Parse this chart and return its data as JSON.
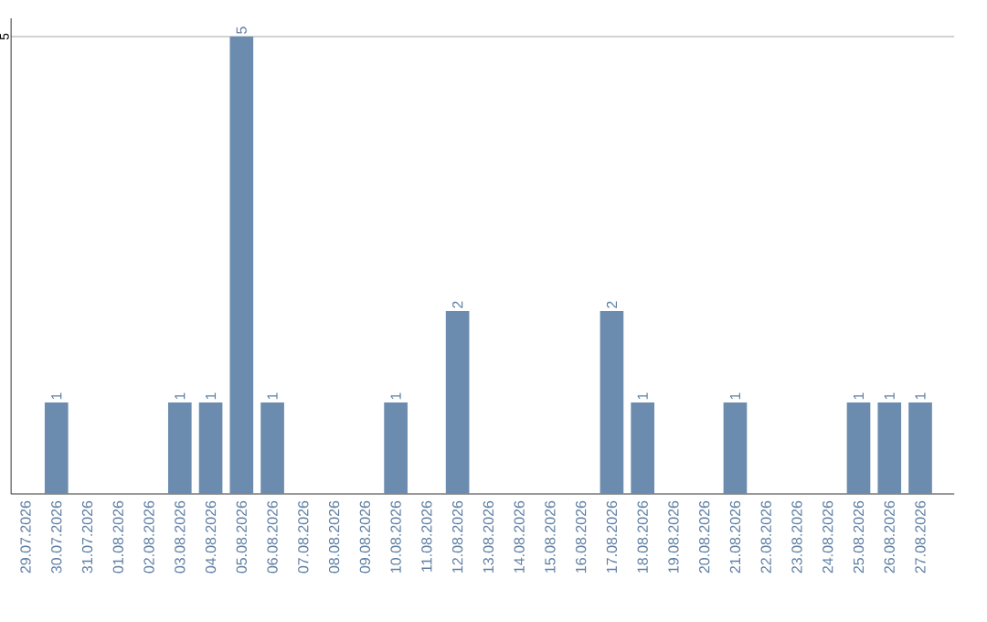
{
  "chart_data": {
    "type": "bar",
    "categories": [
      "29.07.2026",
      "30.07.2026",
      "31.07.2026",
      "01.08.2026",
      "02.08.2026",
      "03.08.2026",
      "04.08.2026",
      "05.08.2026",
      "06.08.2026",
      "07.08.2026",
      "08.08.2026",
      "09.08.2026",
      "10.08.2026",
      "11.08.2026",
      "12.08.2026",
      "13.08.2026",
      "14.08.2026",
      "15.08.2026",
      "16.08.2026",
      "17.08.2026",
      "18.08.2026",
      "19.08.2026",
      "20.08.2026",
      "21.08.2026",
      "22.08.2026",
      "23.08.2026",
      "24.08.2026",
      "25.08.2026",
      "26.08.2026",
      "27.08.2026"
    ],
    "values": [
      0,
      1,
      0,
      0,
      0,
      1,
      1,
      5,
      1,
      0,
      0,
      0,
      1,
      0,
      2,
      0,
      0,
      0,
      0,
      2,
      1,
      0,
      0,
      1,
      0,
      0,
      0,
      1,
      1,
      1
    ],
    "value_labels": [
      null,
      "1",
      null,
      null,
      null,
      "1",
      "1",
      "5",
      "1",
      null,
      null,
      null,
      "1",
      null,
      "2",
      null,
      null,
      null,
      null,
      "2",
      "1",
      null,
      null,
      "1",
      null,
      null,
      null,
      "1",
      "1",
      "1"
    ],
    "color": "#6b8cae",
    "ylim": [
      0,
      5.2
    ],
    "yticks": [
      5
    ],
    "grid": "y"
  }
}
